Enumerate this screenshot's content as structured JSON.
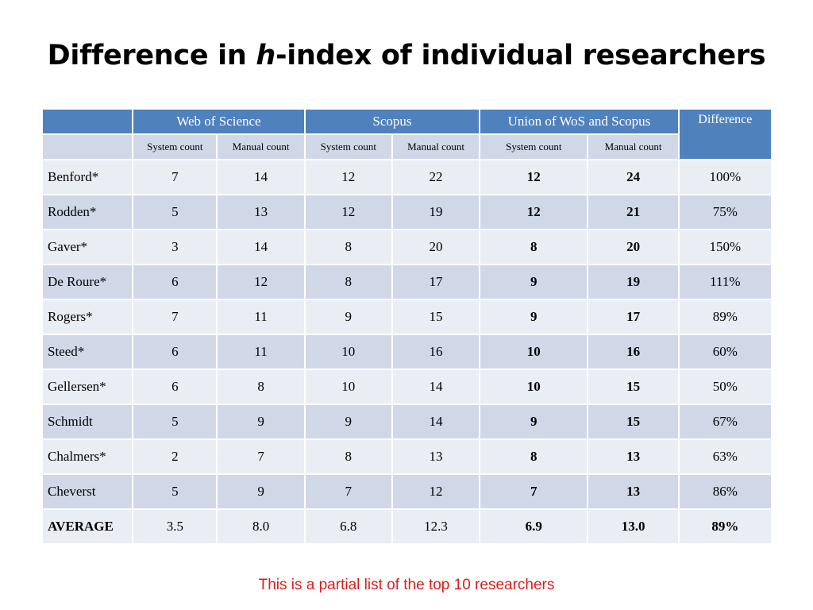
{
  "title": {
    "prefix": "Difference in ",
    "italic": "h",
    "suffix": "-index of individual researchers"
  },
  "table": {
    "groups": [
      "Web of Science",
      "Scopus",
      "Union of  WoS and Scopus",
      "Difference"
    ],
    "subheaders": [
      "System count",
      "Manual count",
      "System count",
      "Manual count",
      "System count",
      "Manual count"
    ],
    "rows": [
      [
        "Benford*",
        "7",
        "14",
        "12",
        "22",
        "12",
        "24",
        "100%"
      ],
      [
        "Rodden*",
        "5",
        "13",
        "12",
        "19",
        "12",
        "21",
        "75%"
      ],
      [
        "Gaver*",
        "3",
        "14",
        "8",
        "20",
        "8",
        "20",
        "150%"
      ],
      [
        "De Roure*",
        "6",
        "12",
        "8",
        "17",
        "9",
        "19",
        "111%"
      ],
      [
        "Rogers*",
        "7",
        "11",
        "9",
        "15",
        "9",
        "17",
        "89%"
      ],
      [
        "Steed*",
        "6",
        "11",
        "10",
        "16",
        "10",
        "16",
        "60%"
      ],
      [
        "Gellersen*",
        "6",
        "8",
        "10",
        "14",
        "10",
        "15",
        "50%"
      ],
      [
        "Schmidt",
        "5",
        "9",
        "9",
        "14",
        "9",
        "15",
        "67%"
      ],
      [
        "Chalmers*",
        "2",
        "7",
        "8",
        "13",
        "8",
        "13",
        "63%"
      ],
      [
        "Cheverst",
        "5",
        "9",
        "7",
        "12",
        "7",
        "13",
        "86%"
      ],
      [
        "AVERAGE",
        "3.5",
        "8.0",
        "6.8",
        "12.3",
        "6.9",
        "13.0",
        "89%"
      ]
    ],
    "colors": {
      "header": "#4f81bd",
      "row_light": "#e9edf4",
      "row_dark": "#d0d8e8"
    }
  },
  "footnote": "This is a partial list of the top 10 researchers"
}
